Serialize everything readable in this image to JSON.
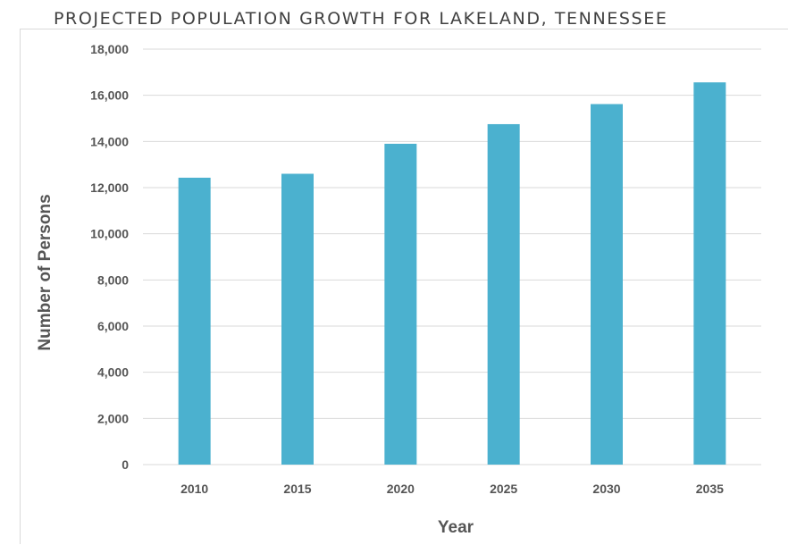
{
  "chart_data": {
    "type": "bar",
    "title": "PROJECTED POPULATION GROWTH FOR LAKELAND, TENNESSEE",
    "xlabel": "Year",
    "ylabel": "Number of Persons",
    "categories": [
      "2010",
      "2015",
      "2020",
      "2025",
      "2030",
      "2035"
    ],
    "values": [
      12430,
      12600,
      13900,
      14750,
      15620,
      16560
    ],
    "ylim": [
      0,
      18000
    ],
    "yticks": [
      0,
      2000,
      4000,
      6000,
      8000,
      10000,
      12000,
      14000,
      16000,
      18000
    ],
    "ytick_labels": [
      "0",
      "2,000",
      "4,000",
      "6,000",
      "8,000",
      "10,000",
      "12,000",
      "14,000",
      "16,000",
      "18,000"
    ],
    "grid": true,
    "bar_color": "#4bb1cf"
  }
}
